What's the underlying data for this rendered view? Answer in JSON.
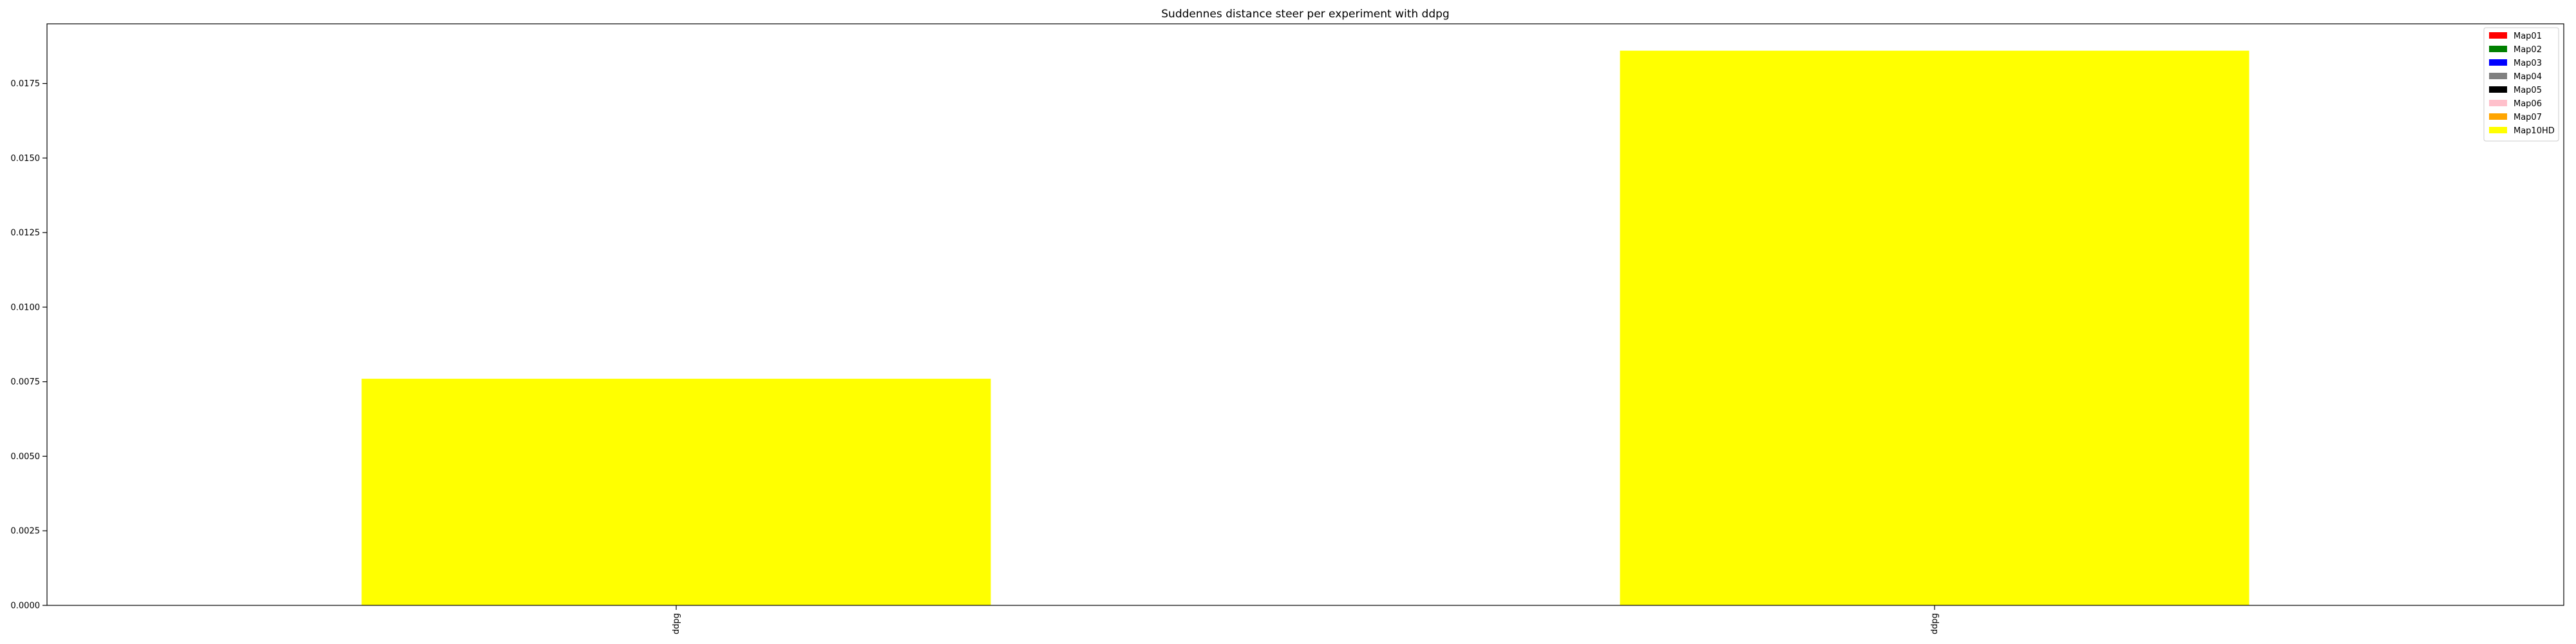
{
  "chart_data": {
    "type": "bar",
    "title": "Suddennes distance steer per experiment with ddpg",
    "xlabel": "",
    "ylabel": "",
    "categories": [
      "ddpg",
      "ddpg"
    ],
    "series": [
      {
        "name": "Map01",
        "color": "#ff0000",
        "values": [
          0,
          0
        ]
      },
      {
        "name": "Map02",
        "color": "#008000",
        "values": [
          0,
          0
        ]
      },
      {
        "name": "Map03",
        "color": "#0000ff",
        "values": [
          0,
          0
        ]
      },
      {
        "name": "Map04",
        "color": "#808080",
        "values": [
          0,
          0
        ]
      },
      {
        "name": "Map05",
        "color": "#000000",
        "values": [
          0,
          0
        ]
      },
      {
        "name": "Map06",
        "color": "#ffc0cb",
        "values": [
          0,
          0
        ]
      },
      {
        "name": "Map07",
        "color": "#ffa500",
        "values": [
          0,
          0
        ]
      },
      {
        "name": "Map10HD",
        "color": "#ffff00",
        "values": [
          0.0076,
          0.0186
        ]
      }
    ],
    "ylim": [
      0,
      0.0195
    ],
    "yticks": [
      "0.0000",
      "0.0025",
      "0.0050",
      "0.0075",
      "0.0100",
      "0.0125",
      "0.0150",
      "0.0175"
    ],
    "legend_position": "top-right",
    "grid": false
  }
}
